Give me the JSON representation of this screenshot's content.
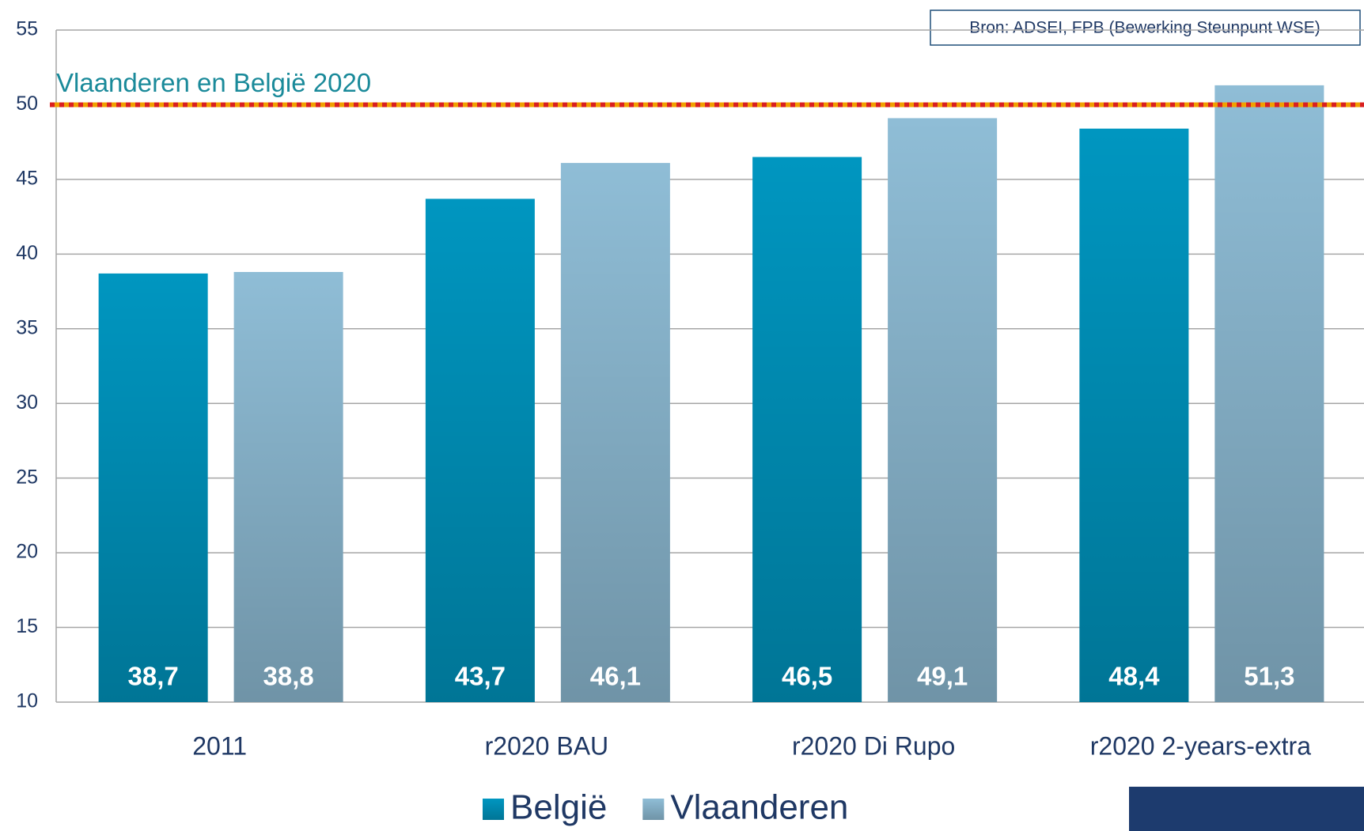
{
  "chart_data": {
    "type": "bar",
    "source": "Bron: ADSEI, FPB (Bewerking Steunpunt WSE)",
    "categories": [
      "2011",
      "r2020 BAU",
      "r2020 Di Rupo",
      "r2020 2-years-extra"
    ],
    "series": [
      {
        "name": "België",
        "color": "#0096c0",
        "values": [
          38.7,
          43.7,
          46.5,
          48.4
        ],
        "value_labels": [
          "38,7",
          "43,7",
          "46,5",
          "48,4"
        ]
      },
      {
        "name": "Vlaanderen",
        "color": "#8fbdd6",
        "values": [
          38.8,
          46.1,
          49.1,
          51.3
        ],
        "value_labels": [
          "38,8",
          "46,1",
          "49,1",
          "51,3"
        ]
      }
    ],
    "reference_lines": [
      {
        "value": 50,
        "label": "Vlaanderen en België 2020"
      }
    ],
    "ylim": [
      10,
      55
    ],
    "yticks": [
      10,
      15,
      20,
      25,
      30,
      35,
      40,
      45,
      50,
      55
    ],
    "grid": true,
    "legend": "bottom"
  }
}
